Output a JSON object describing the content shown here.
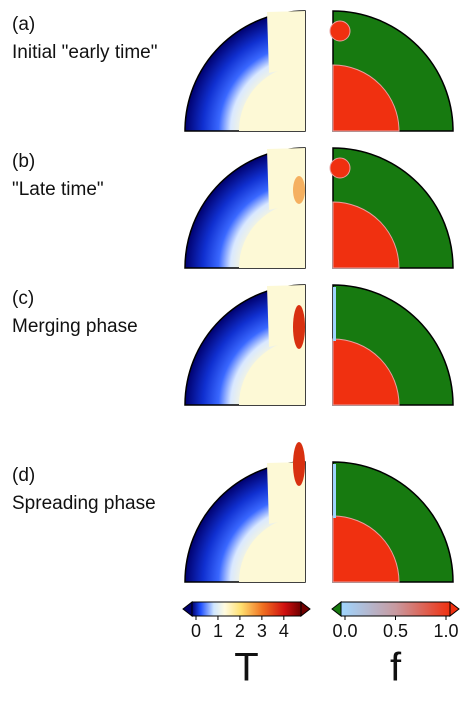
{
  "panels": [
    {
      "tag": "(a)",
      "caption": "Initial \"early time\""
    },
    {
      "tag": "(b)",
      "caption": "\"Late time\""
    },
    {
      "tag": "(c)",
      "caption": "Merging phase"
    },
    {
      "tag": "(d)",
      "caption": "Spreading phase"
    }
  ],
  "colorbars": [
    {
      "label": "T",
      "lim": [
        0,
        4.6
      ],
      "ticks": [
        0,
        1,
        2,
        3,
        4
      ]
    },
    {
      "label": "f",
      "lim": [
        0,
        1
      ],
      "ticks": [
        {
          "value": 0,
          "label": "0.0"
        },
        {
          "value": 0.5,
          "label": "0.5"
        },
        {
          "value": 1,
          "label": "1.0"
        }
      ]
    }
  ]
}
